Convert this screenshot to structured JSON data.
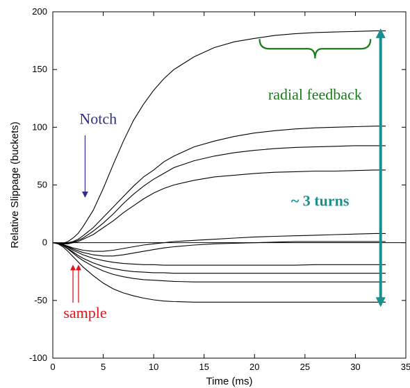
{
  "chart_data": {
    "type": "line",
    "xlabel": "Time (ms)",
    "ylabel": "Relative Slippage (buckets)",
    "xlim": [
      0,
      35
    ],
    "ylim": [
      -100,
      200
    ],
    "xticks": [
      0,
      5,
      10,
      15,
      20,
      25,
      30,
      35
    ],
    "yticks": [
      -100,
      -50,
      0,
      50,
      100,
      150,
      200
    ],
    "grid": false,
    "line_color": "#000000",
    "x": [
      0,
      0.5,
      1,
      1.5,
      2,
      2.5,
      3,
      4,
      5,
      6,
      7,
      8,
      9,
      10,
      11,
      12,
      14,
      16,
      18,
      20,
      22,
      24,
      26,
      28,
      30,
      32,
      33
    ],
    "series": [
      {
        "values": [
          0,
          -0.5,
          -0.5,
          1,
          4,
          8,
          14,
          28,
          47,
          68,
          88,
          106,
          120,
          132,
          142,
          150,
          161,
          169,
          174,
          177,
          179.5,
          181,
          182,
          182.5,
          183,
          183.5,
          183.5
        ]
      },
      {
        "values": [
          0,
          -0.5,
          -1,
          0,
          1,
          3,
          6,
          13,
          22,
          31,
          40,
          49,
          57,
          63,
          70,
          75,
          83,
          88,
          92,
          95,
          97,
          98.5,
          99.5,
          100,
          100.5,
          101,
          101
        ]
      },
      {
        "values": [
          0,
          -0.5,
          -1,
          -0.5,
          0.5,
          2,
          4,
          10,
          17,
          25,
          34,
          42,
          49,
          55,
          60,
          65,
          71,
          75,
          78,
          80,
          81.5,
          82.5,
          83,
          83.5,
          84,
          84,
          84
        ]
      },
      {
        "values": [
          0,
          -0.5,
          -1,
          -1,
          0,
          1,
          3,
          7,
          13,
          19,
          26,
          32,
          38,
          43,
          47,
          50,
          54,
          57,
          58.5,
          60,
          61,
          61.5,
          62,
          62,
          62.5,
          63,
          63
        ]
      },
      {
        "values": [
          0,
          -0.5,
          -1.5,
          -3,
          -4.5,
          -5.5,
          -6.5,
          -7.5,
          -7.5,
          -6.5,
          -5,
          -3.5,
          -2,
          -1,
          0,
          1,
          2,
          3,
          4,
          5,
          5.5,
          6,
          6.5,
          7,
          7.5,
          8,
          8
        ]
      },
      {
        "values": [
          0,
          -0.5,
          -2,
          -3.5,
          -5.5,
          -7,
          -8.5,
          -10.5,
          -11.5,
          -11.5,
          -10.5,
          -9,
          -7.5,
          -6,
          -4.5,
          -3.5,
          -2,
          -1,
          -0.5,
          0,
          0.5,
          1,
          1,
          1,
          1,
          1,
          1
        ]
      },
      {
        "values": [
          0,
          -0.5,
          -2,
          -4,
          -6.5,
          -8.5,
          -10.5,
          -13.5,
          -15.5,
          -17,
          -18,
          -18.5,
          -19,
          -19,
          -19.5,
          -19.5,
          -19.5,
          -19.5,
          -19.5,
          -19.5,
          -19.5,
          -19.5,
          -19,
          -19,
          -19,
          -19,
          -19
        ]
      },
      {
        "values": [
          0,
          -0.5,
          -2.5,
          -5,
          -8,
          -11,
          -13.5,
          -17.5,
          -20.5,
          -22.5,
          -24,
          -25,
          -25.5,
          -26,
          -26,
          -26.5,
          -26.5,
          -26.5,
          -26.5,
          -26.5,
          -26.5,
          -26.5,
          -26.5,
          -26.5,
          -26.5,
          -26.5,
          -26.5
        ]
      },
      {
        "values": [
          0,
          -0.5,
          -2.5,
          -5.5,
          -9,
          -12.5,
          -15.5,
          -20.5,
          -24.5,
          -27.5,
          -29.5,
          -31,
          -32,
          -32.5,
          -33,
          -33.5,
          -34,
          -34,
          -34,
          -34,
          -34,
          -34,
          -34,
          -34,
          -34,
          -34,
          -34
        ]
      },
      {
        "values": [
          0,
          -1,
          -3.5,
          -7.5,
          -12,
          -16.5,
          -21,
          -28.5,
          -35,
          -40,
          -43.5,
          -46,
          -48,
          -49.5,
          -50.5,
          -51,
          -51.5,
          -51.5,
          -51.5,
          -51.5,
          -51.5,
          -51.5,
          -51.5,
          -51.5,
          -51.5,
          -51.5,
          -51.5
        ]
      }
    ],
    "annotations": {
      "radial": {
        "text": "radial feedback",
        "color": "#1a7a1a",
        "brace_x": [
          20.5,
          31.5
        ],
        "brace_y": 168,
        "text_x": 26,
        "text_y": 124
      },
      "notch": {
        "text": "Notch",
        "color": "#2e2e8c",
        "text_x": 4.5,
        "text_y": 103,
        "arrow_x": 3.2,
        "arrow_y_from": 93,
        "arrow_y_to": 40
      },
      "turns": {
        "text": "~ 3 turns",
        "color": "#1a8f8f",
        "text_x": 26.5,
        "text_y": 32,
        "arrow_x": 32.5,
        "arrow_y_from": 184,
        "arrow_y_to": -54
      },
      "sample": {
        "text": "sample",
        "color": "#e0151c",
        "text_x": 3.2,
        "text_y": -65,
        "arrows_x": [
          2.0,
          2.55
        ],
        "arrow_y_from": -52,
        "arrow_y_to": -20
      }
    }
  }
}
